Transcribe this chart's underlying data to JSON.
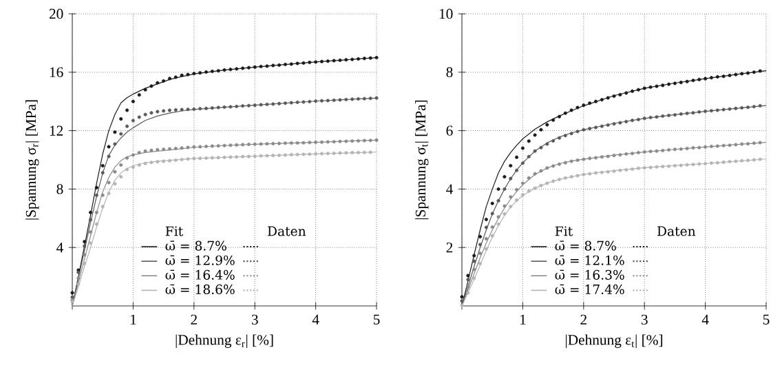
{
  "chart_data": [
    {
      "type": "line",
      "xlabel": "|Dehnung ε$_{r}$| [%]",
      "ylabel": "|Spannung σ$_{r}$| [MPa]",
      "xlim": [
        0,
        5
      ],
      "ylim": [
        0,
        20
      ],
      "xticks": [
        {
          "value": 0,
          "label": null
        },
        1,
        2,
        3,
        4,
        5
      ],
      "yticks": [
        4,
        8,
        12,
        16,
        20
      ],
      "grid": true,
      "legend": "bottom",
      "annotations": [
        "Fit",
        "Daten"
      ],
      "x": [
        0,
        0.1,
        0.2,
        0.3,
        0.4,
        0.5,
        0.6,
        0.7,
        0.8,
        0.9,
        1,
        1.1,
        1.2,
        1.3,
        1.4,
        1.5,
        1.6,
        1.7,
        1.8,
        1.9,
        2,
        2.1,
        2.2,
        2.3,
        2.4,
        2.5,
        2.6,
        2.7,
        2.8,
        2.9,
        3,
        3.1,
        3.2,
        3.3,
        3.4,
        3.5,
        3.6,
        3.7,
        3.8,
        3.9,
        4,
        4.1,
        4.2,
        4.3,
        4.4,
        4.5,
        4.6,
        4.7,
        4.8,
        4.9,
        5
      ],
      "series": [
        {
          "name": "ω̄ = 8.7%",
          "color": "#1a1a1a",
          "marker": "none",
          "x": [
            0,
            0.1,
            0.2,
            0.3,
            0.4,
            0.5,
            0.6,
            0.7,
            0.8,
            0.9,
            1,
            1.2,
            1.4,
            1.6,
            1.8,
            2,
            2.5,
            3,
            3.5,
            4,
            4.5,
            5
          ],
          "values": [
            0,
            2.0,
            4.1,
            6.2,
            8.4,
            10.4,
            12.0,
            13.1,
            13.9,
            14.26,
            14.5,
            14.9,
            15.2,
            15.5,
            15.7,
            15.88,
            16.15,
            16.35,
            16.53,
            16.7,
            16.85,
            17.0
          ]
        },
        {
          "name": "ω̄ = 12.9%",
          "color": "#5a5a5a",
          "marker": "none",
          "x": [
            0,
            0.1,
            0.2,
            0.3,
            0.4,
            0.5,
            0.6,
            0.7,
            0.8,
            0.9,
            1,
            1.2,
            1.4,
            1.6,
            1.8,
            2,
            2.5,
            3,
            3.5,
            4,
            4.5,
            5
          ],
          "values": [
            0,
            1.9,
            3.8,
            5.7,
            7.5,
            9.1,
            10.3,
            11.0,
            11.5,
            11.9,
            12.2,
            12.7,
            13.0,
            13.2,
            13.35,
            13.45,
            13.6,
            13.74,
            13.88,
            14.02,
            14.13,
            14.23
          ]
        },
        {
          "name": "ω̄ = 16.4%",
          "color": "#8a8a8a",
          "marker": "none",
          "x": [
            0,
            0.1,
            0.2,
            0.3,
            0.4,
            0.5,
            0.6,
            0.7,
            0.8,
            0.9,
            1,
            1.2,
            1.4,
            1.6,
            1.8,
            2,
            2.5,
            3,
            3.5,
            4,
            4.5,
            5
          ],
          "values": [
            0,
            1.6,
            3.2,
            4.8,
            6.4,
            7.8,
            8.8,
            9.5,
            9.95,
            10.2,
            10.35,
            10.5,
            10.6,
            10.68,
            10.76,
            10.86,
            10.98,
            11.07,
            11.14,
            11.2,
            11.28,
            11.35
          ]
        },
        {
          "name": "ω̄ = 18.6%",
          "color": "#b4b4b4",
          "marker": "none",
          "x": [
            0,
            0.1,
            0.2,
            0.3,
            0.4,
            0.5,
            0.6,
            0.7,
            0.8,
            0.9,
            1,
            1.2,
            1.4,
            1.6,
            1.8,
            2,
            2.5,
            3,
            3.5,
            4,
            4.5,
            5
          ],
          "values": [
            0,
            1.3,
            2.7,
            4.0,
            5.4,
            6.7,
            7.8,
            8.6,
            9.1,
            9.4,
            9.6,
            9.8,
            9.9,
            9.97,
            10.03,
            10.09,
            10.17,
            10.25,
            10.33,
            10.41,
            10.47,
            10.53
          ]
        },
        {
          "type": "scatter",
          "color": "#1a1a1a",
          "marker": "circle",
          "values": [
            0.9,
            2.45,
            4.4,
            6.4,
            8.1,
            9.6,
            10.9,
            11.9,
            12.8,
            13.4,
            14.0,
            14.45,
            14.8,
            15.05,
            15.27,
            15.4,
            15.57,
            15.66,
            15.79,
            15.84,
            15.91,
            15.96,
            16.01,
            16.06,
            16.1,
            16.15,
            16.19,
            16.23,
            16.27,
            16.31,
            16.35,
            16.39,
            16.42,
            16.46,
            16.49,
            16.53,
            16.56,
            16.6,
            16.63,
            16.67,
            16.7,
            16.73,
            16.76,
            16.79,
            16.82,
            16.85,
            16.88,
            16.91,
            16.94,
            16.97,
            17.0
          ]
        },
        {
          "type": "scatter",
          "color": "#5a5a5a",
          "marker": "circle",
          "values": [
            0.6,
            2.3,
            4.1,
            5.9,
            7.58,
            9.12,
            10.24,
            11.08,
            11.78,
            12.3,
            12.69,
            12.92,
            13.1,
            13.22,
            13.3,
            13.35,
            13.39,
            13.42,
            13.44,
            13.46,
            13.47,
            13.5,
            13.52,
            13.55,
            13.58,
            13.61,
            13.63,
            13.66,
            13.69,
            13.71,
            13.74,
            13.77,
            13.8,
            13.82,
            13.85,
            13.88,
            13.91,
            13.94,
            13.96,
            13.99,
            14.02,
            14.04,
            14.06,
            14.08,
            14.1,
            14.13,
            14.15,
            14.17,
            14.19,
            14.21,
            14.23
          ]
        },
        {
          "type": "scatter",
          "color": "#8a8a8a",
          "marker": "circle",
          "values": [
            0.4,
            1.9,
            3.5,
            5.06,
            6.4,
            7.58,
            8.44,
            9.18,
            9.65,
            10.13,
            10.33,
            10.5,
            10.6,
            10.65,
            10.69,
            10.72,
            10.75,
            10.78,
            10.81,
            10.85,
            10.88,
            10.9,
            10.92,
            10.94,
            10.96,
            10.98,
            11.0,
            11.02,
            11.04,
            11.06,
            11.07,
            11.08,
            11.1,
            11.11,
            11.12,
            11.14,
            11.15,
            11.16,
            11.17,
            11.19,
            11.2,
            11.21,
            11.23,
            11.24,
            11.26,
            11.27,
            11.29,
            11.3,
            11.32,
            11.33,
            11.35
          ]
        },
        {
          "type": "scatter",
          "color": "#b4b4b4",
          "marker": "circle",
          "values": [
            0.3,
            1.5,
            2.9,
            4.3,
            5.6,
            6.8,
            7.7,
            8.36,
            8.84,
            9.34,
            9.5,
            9.65,
            9.75,
            9.82,
            9.87,
            9.9,
            9.94,
            9.98,
            10.02,
            10.06,
            10.09,
            10.1,
            10.12,
            10.14,
            10.15,
            10.17,
            10.19,
            10.2,
            10.22,
            10.23,
            10.25,
            10.27,
            10.28,
            10.3,
            10.31,
            10.33,
            10.35,
            10.36,
            10.38,
            10.39,
            10.41,
            10.42,
            10.44,
            10.45,
            10.47,
            10.48,
            10.49,
            10.5,
            10.51,
            10.52,
            null
          ]
        }
      ]
    },
    {
      "type": "line",
      "xlabel": "|Dehnung ε$_{t}$| [%]",
      "ylabel": "|Spannung σ$_{t}$| [MPa]",
      "xlim": [
        0,
        5
      ],
      "ylim": [
        0,
        10
      ],
      "xticks": [
        {
          "value": 0,
          "label": null
        },
        1,
        2,
        3,
        4,
        5
      ],
      "yticks": [
        2,
        4,
        6,
        8,
        10
      ],
      "grid": true,
      "legend": "bottom",
      "annotations": [
        "Fit",
        "Daten"
      ],
      "x": [
        0,
        0.1,
        0.2,
        0.3,
        0.4,
        0.5,
        0.6,
        0.7,
        0.8,
        0.9,
        1,
        1.1,
        1.2,
        1.3,
        1.4,
        1.5,
        1.6,
        1.7,
        1.8,
        1.9,
        2,
        2.1,
        2.2,
        2.3,
        2.4,
        2.5,
        2.6,
        2.7,
        2.8,
        2.9,
        3,
        3.1,
        3.2,
        3.3,
        3.4,
        3.5,
        3.6,
        3.7,
        3.8,
        3.9,
        4,
        4.1,
        4.2,
        4.3,
        4.4,
        4.5,
        4.6,
        4.7,
        4.8,
        4.9
      ],
      "series": [
        {
          "name": "ω̄ = 8.7%",
          "color": "#1a1a1a",
          "marker": "none",
          "x": [
            0,
            0.1,
            0.2,
            0.3,
            0.4,
            0.5,
            0.6,
            0.7,
            0.8,
            0.9,
            1,
            1.2,
            1.4,
            1.6,
            1.8,
            2,
            2.5,
            3,
            3.5,
            4,
            4.5,
            5
          ],
          "values": [
            0,
            0.85,
            1.75,
            2.6,
            3.4,
            4.0,
            4.55,
            4.95,
            5.25,
            5.5,
            5.72,
            6.05,
            6.3,
            6.5,
            6.68,
            6.85,
            7.2,
            7.45,
            7.63,
            7.78,
            7.92,
            8.05
          ]
        },
        {
          "name": "ω̄ = 12.1%",
          "color": "#5a5a5a",
          "marker": "none",
          "x": [
            0,
            0.1,
            0.2,
            0.3,
            0.4,
            0.5,
            0.6,
            0.7,
            0.8,
            0.9,
            1,
            1.2,
            1.4,
            1.6,
            1.8,
            2,
            2.5,
            3,
            3.5,
            4,
            4.5,
            5
          ],
          "values": [
            0,
            0.65,
            1.35,
            2.0,
            2.6,
            3.15,
            3.6,
            4.0,
            4.35,
            4.65,
            4.9,
            5.3,
            5.58,
            5.78,
            5.92,
            6.03,
            6.25,
            6.42,
            6.55,
            6.66,
            6.76,
            6.86
          ]
        },
        {
          "name": "ω̄ = 16.3%",
          "color": "#8a8a8a",
          "marker": "none",
          "x": [
            0,
            0.1,
            0.2,
            0.3,
            0.4,
            0.5,
            0.6,
            0.7,
            0.8,
            0.9,
            1,
            1.2,
            1.4,
            1.6,
            1.8,
            2,
            2.5,
            3,
            3.5,
            4,
            4.5,
            5
          ],
          "values": [
            0,
            0.55,
            1.1,
            1.65,
            2.15,
            2.6,
            3.0,
            3.35,
            3.65,
            3.92,
            4.15,
            4.5,
            4.72,
            4.87,
            4.96,
            5.02,
            5.16,
            5.27,
            5.36,
            5.44,
            5.52,
            5.6
          ]
        },
        {
          "name": "ω̄ = 17.4%",
          "color": "#b4b4b4",
          "marker": "none",
          "x": [
            0,
            0.1,
            0.2,
            0.3,
            0.4,
            0.5,
            0.6,
            0.7,
            0.8,
            0.9,
            1,
            1.2,
            1.4,
            1.6,
            1.8,
            2,
            2.5,
            3,
            3.5,
            4,
            4.5,
            5
          ],
          "values": [
            0,
            0.45,
            0.9,
            1.4,
            1.9,
            2.35,
            2.75,
            3.1,
            3.38,
            3.6,
            3.78,
            4.03,
            4.2,
            4.33,
            4.42,
            4.5,
            4.63,
            4.73,
            4.81,
            4.87,
            4.95,
            5.03
          ]
        },
        {
          "type": "scatter",
          "color": "#1a1a1a",
          "marker": "circle",
          "values": [
            0.31,
            1.04,
            1.72,
            2.37,
            2.96,
            3.51,
            4.0,
            4.42,
            4.8,
            5.09,
            5.4,
            5.64,
            5.85,
            6.03,
            6.2,
            6.36,
            6.48,
            6.6,
            6.7,
            6.79,
            6.87,
            6.94,
            7.0,
            7.06,
            7.12,
            7.18,
            7.23,
            7.29,
            7.35,
            7.4,
            7.45,
            7.49,
            7.52,
            7.55,
            7.59,
            7.62,
            7.65,
            7.68,
            7.72,
            7.75,
            7.78,
            7.81,
            7.84,
            7.86,
            7.89,
            7.92,
            7.95,
            7.97,
            8.0,
            8.04
          ]
        },
        {
          "type": "scatter",
          "color": "#5a5a5a",
          "marker": "circle",
          "values": [
            0.17,
            0.9,
            1.53,
            2.1,
            2.69,
            3.16,
            3.6,
            4.0,
            4.36,
            4.64,
            4.89,
            5.11,
            5.3,
            5.42,
            5.54,
            5.65,
            5.75,
            5.83,
            5.9,
            5.97,
            6.03,
            6.07,
            6.11,
            6.15,
            6.19,
            6.23,
            6.27,
            6.31,
            6.35,
            6.38,
            6.42,
            6.45,
            6.47,
            6.5,
            6.52,
            6.54,
            6.57,
            6.59,
            6.61,
            6.64,
            6.66,
            6.68,
            6.7,
            6.72,
            6.74,
            6.76,
            6.78,
            6.8,
            6.82,
            6.85
          ]
        },
        {
          "type": "scatter",
          "color": "#8a8a8a",
          "marker": "circle",
          "values": [
            null,
            0.65,
            1.25,
            1.8,
            2.3,
            2.7,
            3.05,
            3.42,
            3.73,
            3.98,
            4.2,
            4.38,
            4.52,
            4.62,
            4.72,
            4.79,
            4.85,
            4.9,
            4.95,
            4.99,
            5.02,
            5.05,
            5.07,
            5.1,
            5.12,
            5.15,
            5.17,
            5.2,
            5.22,
            5.25,
            5.27,
            5.29,
            5.3,
            5.32,
            5.34,
            5.36,
            5.37,
            5.39,
            5.41,
            5.42,
            5.44,
            5.46,
            5.47,
            5.49,
            5.5,
            5.52,
            5.54,
            5.55,
            5.57,
            5.59
          ]
        },
        {
          "type": "scatter",
          "color": "#b4b4b4",
          "marker": "circle",
          "values": [
            0.02,
            0.45,
            0.95,
            1.45,
            1.95,
            2.4,
            2.8,
            3.15,
            3.4,
            3.62,
            3.8,
            3.93,
            4.03,
            4.12,
            4.2,
            4.27,
            4.33,
            4.38,
            4.42,
            4.46,
            4.5,
            4.52,
            4.55,
            4.57,
            4.59,
            4.61,
            4.64,
            4.66,
            4.68,
            4.71,
            4.73,
            4.74,
            4.76,
            4.77,
            4.78,
            4.8,
            4.81,
            4.83,
            4.84,
            4.86,
            4.87,
            4.89,
            4.9,
            4.92,
            4.94,
            4.95,
            4.97,
            4.98,
            5.0,
            5.02
          ]
        }
      ]
    }
  ]
}
